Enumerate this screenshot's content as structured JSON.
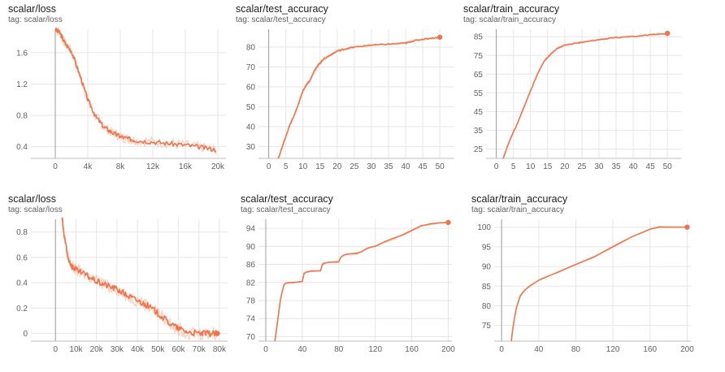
{
  "colors": {
    "line": "#f0734a",
    "smooth_shadow": "#f7c3ad",
    "grid": "#e6e6e6",
    "axis": "#9e9e9e"
  },
  "chart_data": [
    {
      "type": "line",
      "title": "scalar/loss",
      "subtitle": "tag: scalar/loss",
      "xlim": [
        -3000,
        21000
      ],
      "ylim": [
        0.25,
        1.9
      ],
      "xticks": [
        0,
        4000,
        8000,
        12000,
        16000,
        20000
      ],
      "xtick_labels": [
        "0",
        "4k",
        "8k",
        "12k",
        "16k",
        "20k"
      ],
      "yticks": [
        0.4,
        0.8,
        1.2,
        1.6
      ],
      "ytick_labels": [
        "0.4",
        "0.8",
        "1.2",
        "1.6"
      ],
      "noise": 0.06,
      "end_marker": false,
      "series": [
        {
          "x": [
            0,
            600,
            1200,
            2000,
            3000,
            4000,
            5000,
            6000,
            7000,
            8000,
            9000,
            10000,
            12000,
            14000,
            16000,
            18000,
            19800
          ],
          "y": [
            1.9,
            1.85,
            1.72,
            1.62,
            1.32,
            1.0,
            0.78,
            0.65,
            0.58,
            0.53,
            0.5,
            0.48,
            0.46,
            0.44,
            0.42,
            0.39,
            0.36
          ]
        }
      ]
    },
    {
      "type": "line",
      "title": "scalar/test_accuracy",
      "subtitle": "tag: scalar/test_accuracy",
      "xlim": [
        -3,
        54
      ],
      "ylim": [
        24,
        89
      ],
      "xticks": [
        0,
        5,
        10,
        15,
        20,
        25,
        30,
        35,
        40,
        45,
        50
      ],
      "xtick_labels": [
        "0",
        "5",
        "10",
        "15",
        "20",
        "25",
        "30",
        "35",
        "40",
        "45",
        "50"
      ],
      "yticks": [
        30,
        40,
        50,
        60,
        70,
        80
      ],
      "ytick_labels": [
        "30",
        "40",
        "50",
        "60",
        "70",
        "80"
      ],
      "noise": 0.6,
      "end_marker": true,
      "series": [
        {
          "x": [
            1,
            2,
            3,
            4,
            5,
            6,
            7,
            8,
            9,
            10,
            11,
            12,
            13,
            14,
            15,
            16,
            18,
            20,
            22,
            25,
            30,
            35,
            40,
            42,
            45,
            50
          ],
          "y": [
            18,
            20,
            25,
            30,
            35,
            40,
            44,
            48,
            53,
            58,
            61,
            63,
            67,
            70,
            72,
            74,
            76,
            78,
            79,
            80,
            81,
            81.5,
            82,
            83,
            84,
            85
          ]
        }
      ]
    },
    {
      "type": "line",
      "title": "scalar/train_accuracy",
      "subtitle": "tag: scalar/train_accuracy",
      "xlim": [
        -3,
        54
      ],
      "ylim": [
        20,
        89
      ],
      "xticks": [
        0,
        5,
        10,
        15,
        20,
        25,
        30,
        35,
        40,
        45,
        50
      ],
      "xtick_labels": [
        "0",
        "5",
        "10",
        "15",
        "20",
        "25",
        "30",
        "35",
        "40",
        "45",
        "50"
      ],
      "yticks": [
        25,
        35,
        45,
        55,
        65,
        75,
        85
      ],
      "ytick_labels": [
        "25",
        "35",
        "45",
        "55",
        "65",
        "75",
        "85"
      ],
      "noise": 0.5,
      "end_marker": true,
      "series": [
        {
          "x": [
            1,
            2,
            4,
            6,
            8,
            10,
            12,
            14,
            16,
            18,
            20,
            25,
            30,
            35,
            40,
            45,
            50
          ],
          "y": [
            15,
            20,
            30,
            38,
            47,
            56,
            65,
            72,
            76,
            79,
            80.5,
            82,
            83.5,
            84.5,
            85.2,
            86,
            86.8
          ]
        }
      ]
    },
    {
      "type": "line",
      "title": "scalar/loss",
      "subtitle": "tag: scalar/loss",
      "xlim": [
        -12000,
        84000
      ],
      "ylim": [
        -0.06,
        0.9
      ],
      "xticks": [
        0,
        10000,
        20000,
        30000,
        40000,
        50000,
        60000,
        70000,
        80000
      ],
      "xtick_labels": [
        "0",
        "10k",
        "20k",
        "30k",
        "40k",
        "50k",
        "60k",
        "70k",
        "80k"
      ],
      "yticks": [
        0,
        0.2,
        0.4,
        0.6,
        0.8
      ],
      "ytick_labels": [
        "0",
        "0.2",
        "0.4",
        "0.6",
        "0.8"
      ],
      "noise": 0.05,
      "end_marker": true,
      "series": [
        {
          "x": [
            3000,
            4000,
            6000,
            8000,
            10000,
            15000,
            20000,
            25000,
            30000,
            35000,
            40000,
            45000,
            50000,
            55000,
            60000,
            65000,
            70000,
            75000,
            79000
          ],
          "y": [
            0.95,
            0.8,
            0.6,
            0.53,
            0.5,
            0.46,
            0.41,
            0.38,
            0.35,
            0.3,
            0.26,
            0.22,
            0.16,
            0.09,
            0.04,
            0.01,
            0.0,
            0.0,
            0.0
          ]
        }
      ]
    },
    {
      "type": "line",
      "title": "scalar/test_accuracy",
      "subtitle": "tag: scalar/test_accuracy",
      "xlim": [
        -8,
        204
      ],
      "ylim": [
        69,
        96
      ],
      "xticks": [
        0,
        40,
        80,
        120,
        160,
        200
      ],
      "xtick_labels": [
        "0",
        "40",
        "80",
        "120",
        "160",
        "200"
      ],
      "yticks": [
        70,
        74,
        78,
        82,
        86,
        90,
        94
      ],
      "ytick_labels": [
        "70",
        "74",
        "78",
        "82",
        "86",
        "90",
        "94"
      ],
      "noise": 0,
      "end_marker": true,
      "series": [
        {
          "x": [
            8,
            10,
            12,
            14,
            16,
            18,
            20,
            22,
            25,
            30,
            40,
            42,
            45,
            50,
            60,
            62,
            65,
            70,
            80,
            82,
            85,
            90,
            100,
            105,
            110,
            115,
            120,
            125,
            130,
            140,
            150,
            160,
            170,
            180,
            190,
            200
          ],
          "y": [
            66,
            69,
            72,
            75,
            78,
            80,
            81.5,
            81.8,
            82,
            82,
            82.2,
            84,
            84.3,
            84.5,
            84.6,
            86,
            86.3,
            86.5,
            86.6,
            87.5,
            88,
            88.3,
            88.5,
            88.8,
            89.5,
            89.8,
            90,
            90.5,
            91,
            91.8,
            92.5,
            93.5,
            94.5,
            95,
            95.2,
            95.3
          ]
        }
      ]
    },
    {
      "type": "line",
      "title": "scalar/train_accuracy",
      "subtitle": "tag: scalar/train_accuracy",
      "xlim": [
        -8,
        204
      ],
      "ylim": [
        71,
        102
      ],
      "xticks": [
        0,
        40,
        80,
        120,
        160,
        200
      ],
      "xtick_labels": [
        "0",
        "40",
        "80",
        "120",
        "160",
        "200"
      ],
      "yticks": [
        75,
        80,
        85,
        90,
        95,
        100
      ],
      "ytick_labels": [
        "75",
        "80",
        "85",
        "90",
        "95",
        "100"
      ],
      "noise": 0,
      "end_marker": true,
      "series": [
        {
          "x": [
            8,
            10,
            12,
            14,
            16,
            18,
            20,
            25,
            30,
            40,
            50,
            60,
            80,
            100,
            120,
            140,
            160,
            170,
            180,
            190,
            200
          ],
          "y": [
            66,
            70,
            74,
            77,
            79.5,
            81,
            82.5,
            84,
            85,
            86.5,
            87.5,
            88.5,
            90.5,
            92.5,
            95,
            97.5,
            99.5,
            100,
            100,
            100,
            100
          ]
        }
      ]
    }
  ]
}
